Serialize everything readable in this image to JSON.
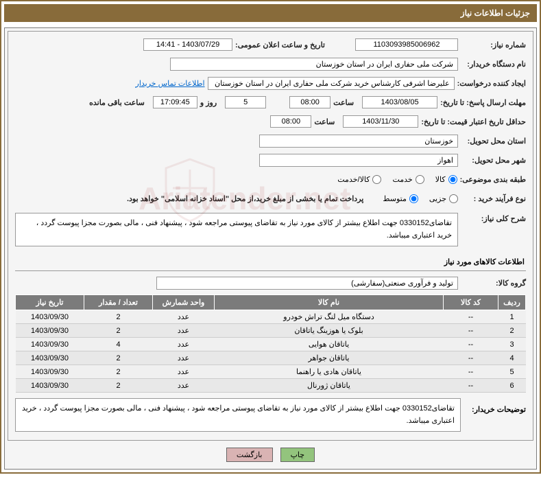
{
  "header": "جزئیات اطلاعات نیاز",
  "need_number_label": "شماره نیاز:",
  "need_number": "1103093985006962",
  "announce_label": "تاریخ و ساعت اعلان عمومی:",
  "announce_value": "1403/07/29 - 14:41",
  "buyer_org_label": "نام دستگاه خریدار:",
  "buyer_org": "شرکت ملی حفاری ایران در استان خوزستان",
  "requester_label": "ایجاد کننده درخواست:",
  "requester": "علیرضا اشرفی کارشناس خرید شرکت ملی حفاری ایران در استان خوزستان",
  "contact_link": "اطلاعات تماس خریدار",
  "deadline_label": "مهلت ارسال پاسخ: تا تاریخ:",
  "deadline_date": "1403/08/05",
  "time_label": "ساعت",
  "deadline_time": "08:00",
  "remaining_days": "5",
  "days_and": "روز و",
  "remaining_time": "17:09:45",
  "remaining_label": "ساعت باقی مانده",
  "validity_label": "حداقل تاریخ اعتبار قیمت: تا تاریخ:",
  "validity_date": "1403/11/30",
  "validity_time": "08:00",
  "province_label": "استان محل تحویل:",
  "province": "خوزستان",
  "city_label": "شهر محل تحویل:",
  "city": "اهواز",
  "category_label": "طبقه بندی موضوعی:",
  "cat_goods": "کالا",
  "cat_service": "خدمت",
  "cat_both": "کالا/خدمت",
  "purchase_type_label": "نوع فرآیند خرید :",
  "pt_partial": "جزیی",
  "pt_medium": "متوسط",
  "purchase_note": "پرداخت تمام یا بخشی از مبلغ خرید،از محل \"اسناد خزانه اسلامی\" خواهد بود.",
  "general_desc_label": "شرح کلی نیاز:",
  "general_desc": "تقاضای0330152 جهت اطلاع بیشتر از کالای مورد نیاز به تقاضای پیوستی مراجعه شود ، پیشنهاد فنی ، مالی بصورت مجزا پیوست گردد ، خرید اعتباری میباشد.",
  "items_section": "اطلاعات کالاهای مورد نیاز",
  "group_label": "گروه کالا:",
  "group": "تولید و فرآوری صنعتی(سفارشی)",
  "cols": {
    "row": "ردیف",
    "code": "کد کالا",
    "name": "نام کالا",
    "unit": "واحد شمارش",
    "qty": "تعداد / مقدار",
    "date": "تاریخ نیاز"
  },
  "rows": [
    {
      "n": "1",
      "code": "--",
      "name": "دستگاه میل لنگ تراش خودرو",
      "unit": "عدد",
      "qty": "2",
      "date": "1403/09/30"
    },
    {
      "n": "2",
      "code": "--",
      "name": "بلوک یا هوزینگ یاتاقان",
      "unit": "عدد",
      "qty": "2",
      "date": "1403/09/30"
    },
    {
      "n": "3",
      "code": "--",
      "name": "یاتاقان هوایی",
      "unit": "عدد",
      "qty": "4",
      "date": "1403/09/30"
    },
    {
      "n": "4",
      "code": "--",
      "name": "یاتاقان جواهر",
      "unit": "عدد",
      "qty": "2",
      "date": "1403/09/30"
    },
    {
      "n": "5",
      "code": "--",
      "name": "یاتاقان هادی یا راهنما",
      "unit": "عدد",
      "qty": "2",
      "date": "1403/09/30"
    },
    {
      "n": "6",
      "code": "--",
      "name": "یاتاقان ژورنال",
      "unit": "عدد",
      "qty": "2",
      "date": "1403/09/30"
    }
  ],
  "buyer_desc_label": "توضیحات خریدار:",
  "buyer_desc": "تقاضای0330152 جهت اطلاع بیشتر از کالای مورد نیاز به تقاضای پیوستی مراجعه شود ، پیشنهاد فنی ، مالی بصورت مجزا پیوست گردد ، خرید اعتباری میباشد.",
  "btn_print": "چاپ",
  "btn_back": "بازگشت"
}
